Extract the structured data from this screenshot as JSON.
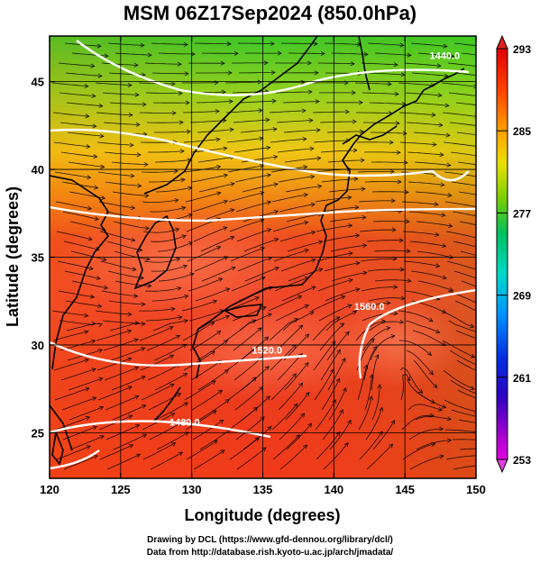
{
  "title": "MSM 06Z17Sep2024 (850.0hPa)",
  "xlabel": "Longitude (degrees)",
  "ylabel": "Latitude  (degrees)",
  "footer": {
    "line1": "Drawing by DCL (https://www.gfd-dennou.org/library/dcl/)",
    "line2": "Data from http://database.rish.kyoto-u.ac.jp/arch/jmadata/"
  },
  "chart_data": {
    "type": "heatmap",
    "x_range": [
      120,
      150
    ],
    "y_range": [
      22.4,
      47.6
    ],
    "x_ticks": [
      120,
      125,
      130,
      135,
      140,
      145,
      150
    ],
    "y_ticks": [
      25,
      30,
      35,
      40,
      45
    ],
    "colorbar": {
      "min": 253,
      "max": 293,
      "ticks": [
        293,
        285,
        277,
        269,
        261,
        253
      ],
      "colors": [
        "#e000e0",
        "#0000c0",
        "#0080ff",
        "#00e0e0",
        "#00c060",
        "#60d000",
        "#c0e000",
        "#ffa000",
        "#ff4000",
        "#e00000"
      ]
    },
    "contour_labels": [
      {
        "text": "1440.0",
        "lon": 147.8,
        "lat": 46.3
      },
      {
        "text": "1520.0",
        "lon": 135.3,
        "lat": 29.5
      },
      {
        "text": "1560.0",
        "lon": 142.5,
        "lat": 32.0
      },
      {
        "text": "1480.0",
        "lon": 129.5,
        "lat": 25.4
      }
    ]
  }
}
